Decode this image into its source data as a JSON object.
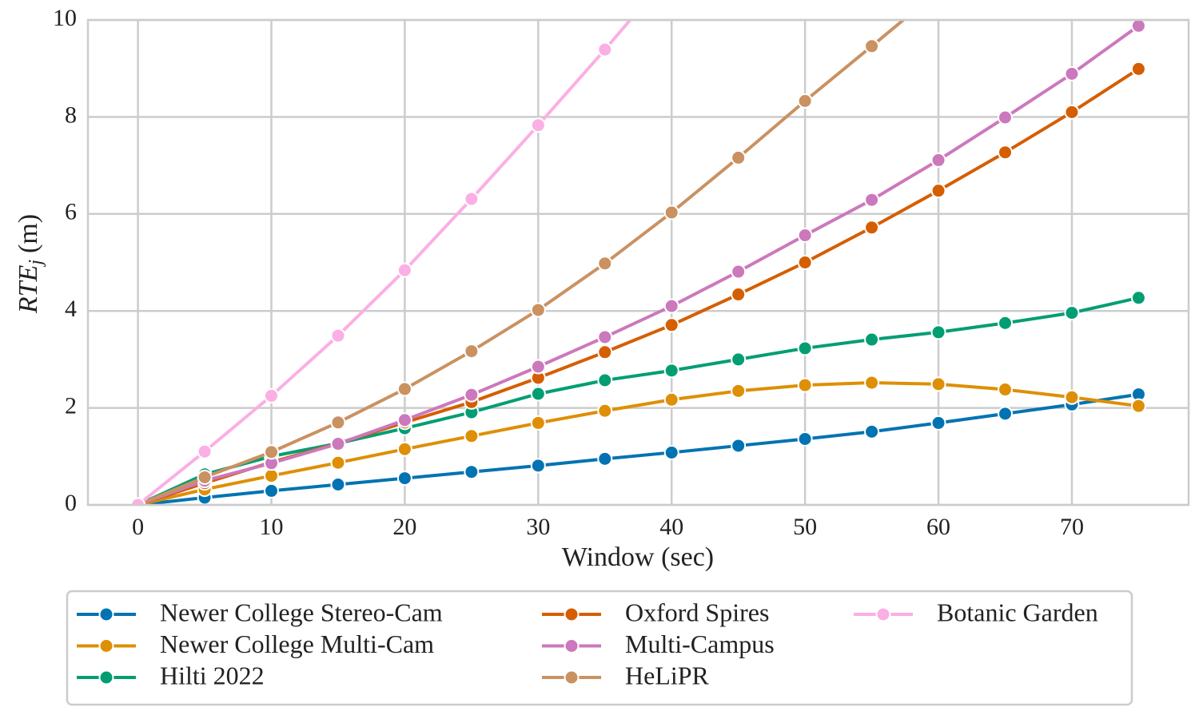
{
  "chart_data": {
    "type": "line",
    "x_label": "Window (sec)",
    "y_label": {
      "main": "RTE",
      "sub": "j",
      "unit": "(m)"
    },
    "x": [
      0,
      5,
      10,
      15,
      20,
      25,
      30,
      35,
      40,
      45,
      50,
      55,
      60,
      65,
      70,
      75
    ],
    "xlim": [
      -3.75,
      78.75
    ],
    "xticks": [
      0,
      10,
      20,
      30,
      40,
      50,
      60,
      70
    ],
    "ylim": [
      0,
      10
    ],
    "yticks": [
      0,
      2,
      4,
      6,
      8,
      10
    ],
    "grid": true,
    "legend_position": "bottom",
    "legend_columns": 3,
    "series": [
      {
        "name": "Newer College Stereo-Cam",
        "color": "#0173b2",
        "values": [
          0,
          0.15,
          0.29,
          0.42,
          0.55,
          0.68,
          0.81,
          0.95,
          1.08,
          1.22,
          1.36,
          1.51,
          1.69,
          1.88,
          2.07,
          2.28
        ]
      },
      {
        "name": "Newer College Multi-Cam",
        "color": "#de8f05",
        "values": [
          0,
          0.32,
          0.6,
          0.87,
          1.15,
          1.42,
          1.69,
          1.94,
          2.17,
          2.35,
          2.47,
          2.52,
          2.49,
          2.38,
          2.22,
          2.04
        ]
      },
      {
        "name": "Hilti 2022",
        "color": "#029e73",
        "values": [
          0,
          0.63,
          1.0,
          1.27,
          1.58,
          1.91,
          2.29,
          2.57,
          2.77,
          3.0,
          3.23,
          3.41,
          3.56,
          3.75,
          3.96,
          4.27
        ]
      },
      {
        "name": "Oxford Spires",
        "color": "#d55e00",
        "values": [
          0,
          0.45,
          0.88,
          1.27,
          1.7,
          2.12,
          2.62,
          3.15,
          3.71,
          4.34,
          5.0,
          5.72,
          6.48,
          7.27,
          8.1,
          8.99
        ]
      },
      {
        "name": "Multi-Campus",
        "color": "#cc78bc",
        "values": [
          0,
          0.5,
          0.86,
          1.26,
          1.75,
          2.27,
          2.85,
          3.46,
          4.1,
          4.81,
          5.56,
          6.29,
          7.11,
          7.99,
          8.89,
          9.88
        ]
      },
      {
        "name": "HeLiPR",
        "color": "#ca9161",
        "values": [
          0,
          0.57,
          1.09,
          1.7,
          2.39,
          3.17,
          4.02,
          4.98,
          6.03,
          7.16,
          8.33,
          9.46,
          10.6,
          null,
          null,
          null
        ]
      },
      {
        "name": "Botanic Garden",
        "color": "#fbafe4",
        "values": [
          0,
          1.1,
          2.25,
          3.49,
          4.84,
          6.31,
          7.83,
          9.39,
          11.0,
          null,
          null,
          null,
          null,
          null,
          null,
          null
        ]
      }
    ]
  }
}
